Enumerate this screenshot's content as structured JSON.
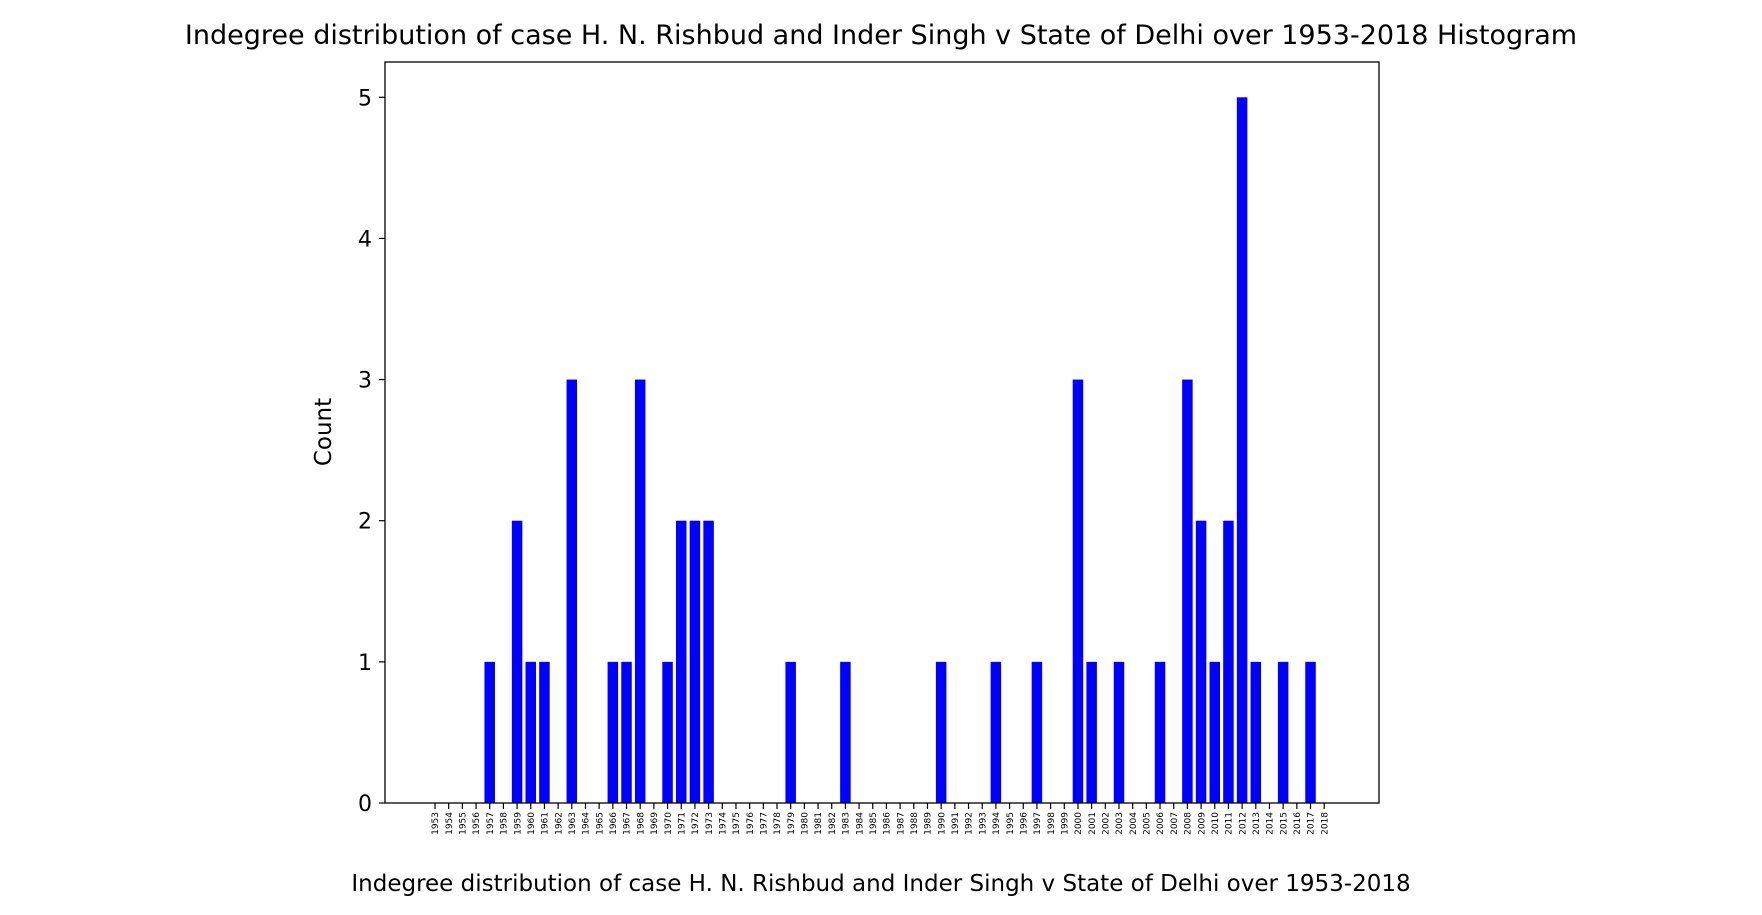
{
  "chart_data": {
    "type": "bar",
    "title": "Indegree distribution of case H. N. Rishbud and Inder Singh v State of Delhi over 1953-2018 Histogram",
    "xlabel": "Indegree distribution of case H. N. Rishbud and Inder Singh v State of Delhi over 1953-2018",
    "ylabel": "Count",
    "ylim": [
      0,
      5.25
    ],
    "yticks": [
      0,
      1,
      2,
      3,
      4,
      5
    ],
    "grid": false,
    "bar_color": "#0000ff",
    "categories": [
      "1953",
      "1954",
      "1955",
      "1956",
      "1957",
      "1958",
      "1959",
      "1960",
      "1961",
      "1962",
      "1963",
      "1964",
      "1965",
      "1966",
      "1967",
      "1968",
      "1969",
      "1970",
      "1971",
      "1972",
      "1973",
      "1974",
      "1975",
      "1976",
      "1977",
      "1978",
      "1979",
      "1980",
      "1981",
      "1982",
      "1983",
      "1984",
      "1985",
      "1986",
      "1987",
      "1988",
      "1989",
      "1990",
      "1991",
      "1992",
      "1993",
      "1994",
      "1995",
      "1996",
      "1997",
      "1998",
      "1999",
      "2000",
      "2001",
      "2002",
      "2003",
      "2004",
      "2005",
      "2006",
      "2007",
      "2008",
      "2009",
      "2010",
      "2011",
      "2012",
      "2013",
      "2014",
      "2015",
      "2016",
      "2017",
      "2018"
    ],
    "values": [
      0,
      0,
      0,
      0,
      1,
      0,
      2,
      1,
      1,
      0,
      3,
      0,
      0,
      1,
      1,
      3,
      0,
      1,
      2,
      2,
      2,
      0,
      0,
      0,
      0,
      0,
      1,
      0,
      0,
      0,
      1,
      0,
      0,
      0,
      0,
      0,
      0,
      1,
      0,
      0,
      0,
      1,
      0,
      0,
      1,
      0,
      0,
      3,
      1,
      0,
      1,
      0,
      0,
      1,
      0,
      3,
      2,
      1,
      2,
      5,
      1,
      0,
      1,
      0,
      1,
      0
    ]
  }
}
